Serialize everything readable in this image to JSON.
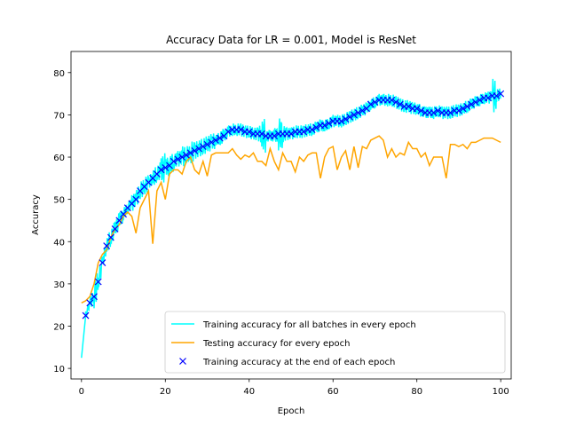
{
  "chart_data": {
    "type": "line",
    "title": "Accuracy Data for LR = 0.001, Model is ResNet",
    "xlabel": "Epoch",
    "ylabel": "Accuracy",
    "xlim": [
      -2.5,
      102.5
    ],
    "ylim": [
      7.5,
      85
    ],
    "xticks": [
      0,
      20,
      40,
      60,
      80,
      100
    ],
    "yticks": [
      10,
      20,
      30,
      40,
      50,
      60,
      70,
      80
    ],
    "grid": false,
    "legend_position": "lower right",
    "series": [
      {
        "name": "Training accuracy for all batches in every epoch",
        "color": "#00ffff",
        "style": "line",
        "amplitude": [
          0,
          2,
          3,
          6,
          4,
          3,
          4,
          4,
          4,
          4,
          3,
          3,
          4,
          4,
          4,
          4,
          3,
          4,
          4,
          7,
          5,
          5,
          4,
          4,
          5,
          4,
          5,
          4,
          4,
          4,
          4,
          4,
          3,
          4,
          3,
          3,
          3,
          3,
          3,
          3,
          3,
          3,
          4,
          8,
          3,
          3,
          4,
          8,
          4,
          3,
          3,
          3,
          3,
          3,
          3,
          3,
          3,
          3,
          3,
          3,
          3,
          3,
          3,
          3,
          3,
          3,
          3,
          3,
          3,
          3,
          3,
          3,
          3,
          3,
          3,
          3,
          3,
          3,
          3,
          3,
          3,
          3,
          3,
          3,
          3,
          3,
          3,
          3,
          3,
          3,
          3,
          3,
          3,
          3,
          3,
          3,
          3,
          3,
          8,
          3,
          3
        ]
      },
      {
        "name": "Testing accuracy for every epoch",
        "color": "#ffa500",
        "style": "line",
        "values": [
          25.5,
          26,
          27,
          30,
          35,
          37,
          38,
          41,
          43,
          44,
          46,
          47,
          46,
          42,
          48,
          50,
          52,
          39.5,
          52,
          54,
          50,
          56,
          57,
          57,
          56,
          59,
          60,
          57,
          56,
          59,
          55.5,
          60.5,
          61,
          61,
          61,
          61,
          62,
          60.5,
          59.5,
          60.5,
          60,
          61,
          59,
          59,
          58,
          62,
          59,
          57,
          61,
          59,
          59,
          56.5,
          60,
          59,
          60.5,
          61,
          61,
          55,
          60,
          62,
          62.5,
          57,
          60,
          61.5,
          57,
          62.5,
          57.5,
          62.5,
          62,
          64,
          64.5,
          65,
          64,
          60,
          62,
          60,
          61,
          60.5,
          63.5,
          62,
          62,
          60,
          61,
          58,
          60,
          60,
          60,
          55,
          63,
          63,
          62.5,
          63,
          62,
          63.5,
          63.5,
          64,
          64.5,
          64.5,
          64.5,
          64,
          63.5
        ]
      },
      {
        "name": "Training accuracy at the end of each epoch",
        "color": "#0000ff",
        "style": "markers",
        "marker": "x",
        "values": [
          12.5,
          22.5,
          25.5,
          27,
          30.5,
          35,
          39,
          41,
          43,
          45,
          46.5,
          48,
          49,
          50,
          52,
          53,
          54,
          55,
          56,
          57,
          57.5,
          58,
          59,
          59.5,
          60,
          60.5,
          61,
          61.5,
          62,
          62.5,
          63,
          63.5,
          64,
          64.5,
          65,
          66,
          66.5,
          66.5,
          66.5,
          66,
          66,
          65.5,
          65.5,
          65.5,
          65,
          65,
          65,
          65.5,
          65.5,
          65.5,
          65.5,
          66,
          66,
          66,
          66.5,
          66.5,
          67,
          67.5,
          67.5,
          68,
          68.5,
          68.5,
          68.5,
          69,
          69.5,
          70,
          70.5,
          71,
          71.5,
          72.5,
          73,
          73.5,
          73.5,
          73.5,
          73.5,
          73,
          72.5,
          72,
          72,
          71.5,
          71.5,
          71,
          70.5,
          70.5,
          70.5,
          71,
          70.5,
          70.5,
          70.5,
          71,
          71,
          71.5,
          72,
          72.5,
          73,
          73.5,
          74,
          74,
          74.5,
          74.5,
          75
        ]
      }
    ]
  }
}
